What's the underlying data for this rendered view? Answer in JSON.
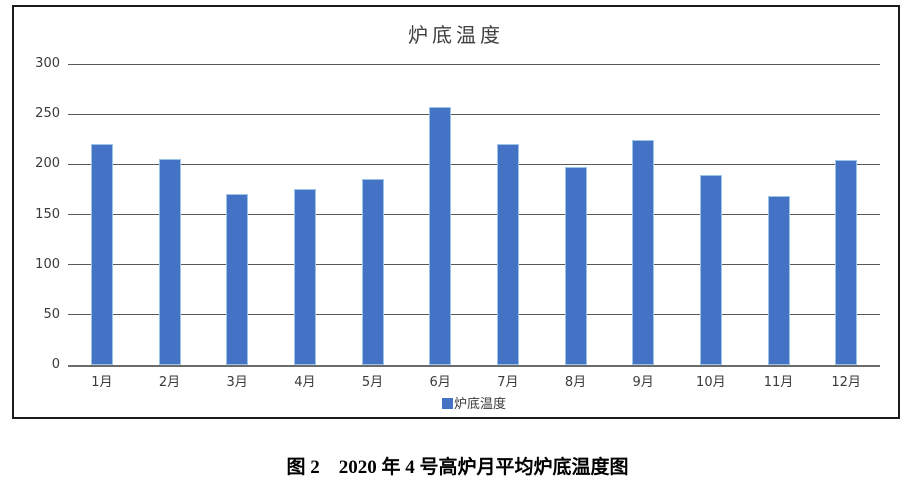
{
  "chart_data": {
    "type": "bar",
    "title": "炉底温度",
    "categories": [
      "1月",
      "2月",
      "3月",
      "4月",
      "5月",
      "6月",
      "7月",
      "8月",
      "9月",
      "10月",
      "11月",
      "12月"
    ],
    "values": [
      220,
      205,
      170,
      175,
      185,
      257,
      220,
      197,
      224,
      189,
      168,
      204
    ],
    "xlabel": "",
    "ylabel": "",
    "ylim": [
      0,
      300
    ],
    "yticks": [
      0,
      50,
      100,
      150,
      200,
      250,
      300
    ],
    "grid": true,
    "legend": {
      "position": "bottom",
      "entries": [
        "炉底温度"
      ]
    },
    "colors": {
      "bar_fill": "#4472C4",
      "bar_border": "#9DC3E6",
      "gridline": "#595959",
      "axis_line": "#6b6b6b",
      "frame_border": "#1a1a1a",
      "title_text": "#404040",
      "tick_text": "#3a3a3a"
    }
  },
  "caption": "图 2　2020 年 4 号高炉月平均炉底温度图"
}
